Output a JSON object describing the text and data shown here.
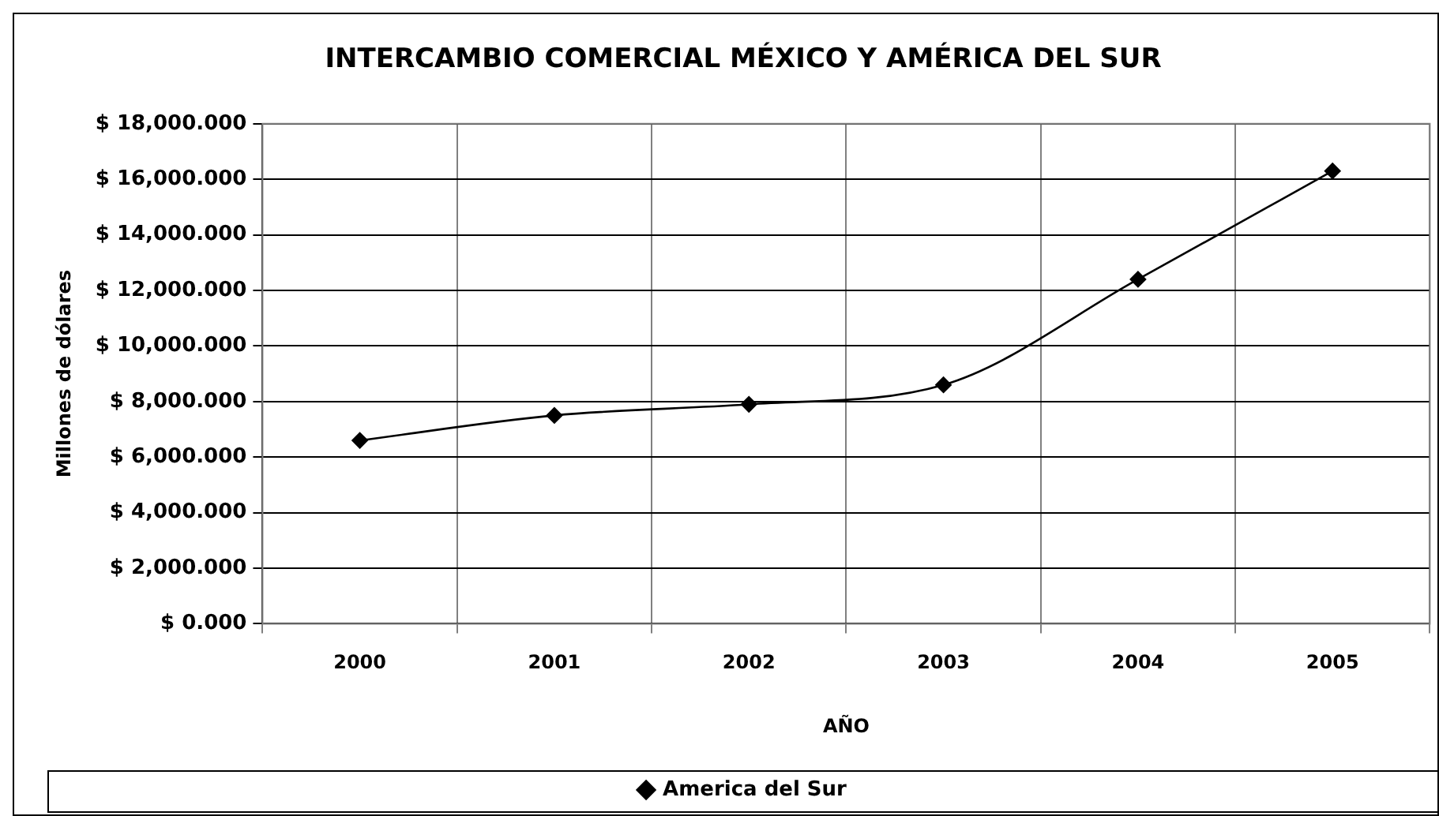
{
  "chart_data": {
    "type": "line",
    "title": "INTERCAMBIO COMERCIAL MÉXICO Y AMÉRICA DEL SUR",
    "xlabel": "AÑO",
    "ylabel": "Millones de dólares",
    "categories": [
      "2000",
      "2001",
      "2002",
      "2003",
      "2004",
      "2005"
    ],
    "series": [
      {
        "name": "America del Sur",
        "color": "#000000",
        "values": [
          6600,
          7500,
          7900,
          8600,
          12400,
          16300
        ]
      }
    ],
    "ylim": [
      0,
      18000
    ],
    "yticks": [
      {
        "value": 0,
        "label": "$ 0.000"
      },
      {
        "value": 2000,
        "label": "$ 2,000.000"
      },
      {
        "value": 4000,
        "label": "$ 4,000.000"
      },
      {
        "value": 6000,
        "label": "$ 6,000.000"
      },
      {
        "value": 8000,
        "label": "$ 8,000.000"
      },
      {
        "value": 10000,
        "label": "$ 10,000.000"
      },
      {
        "value": 12000,
        "label": "$ 12,000.000"
      },
      {
        "value": 14000,
        "label": "$ 14,000.000"
      },
      {
        "value": 16000,
        "label": "$ 16,000.000"
      },
      {
        "value": 18000,
        "label": "$ 18,000.000"
      }
    ],
    "grid": true,
    "legend": "bottom",
    "marker": "diamond",
    "line_style": "solid"
  }
}
